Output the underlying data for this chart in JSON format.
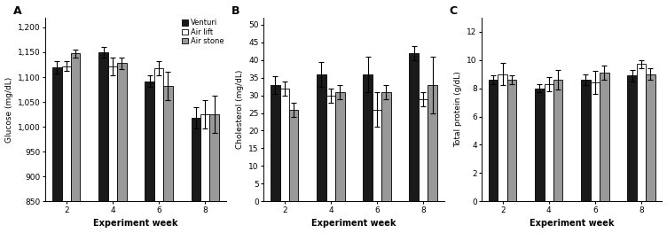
{
  "weeks": [
    2,
    4,
    6,
    8
  ],
  "panel_A": {
    "title": "A",
    "ylabel": "Glucose (mg/dL)",
    "xlabel": "Experiment week",
    "ylim": [
      850,
      1220
    ],
    "yticks": [
      850,
      900,
      950,
      1000,
      1050,
      1100,
      1150,
      1200
    ],
    "venturi": [
      1120,
      1150,
      1092,
      1018
    ],
    "airlift": [
      1122,
      1122,
      1118,
      1025
    ],
    "airstone": [
      1148,
      1128,
      1082,
      1025
    ],
    "venturi_err": [
      12,
      10,
      12,
      22
    ],
    "airlift_err": [
      10,
      18,
      15,
      28
    ],
    "airstone_err": [
      8,
      12,
      28,
      38
    ]
  },
  "panel_B": {
    "title": "B",
    "ylabel": "Cholesterol (mg/dL)",
    "xlabel": "Experiment week",
    "ylim": [
      0,
      52
    ],
    "yticks": [
      0,
      5,
      10,
      15,
      20,
      25,
      30,
      35,
      40,
      45,
      50
    ],
    "venturi": [
      33,
      36,
      36,
      42
    ],
    "airlift": [
      32,
      30,
      26,
      29
    ],
    "airstone": [
      26,
      31,
      31,
      33
    ],
    "venturi_err": [
      2.5,
      3.5,
      5,
      2
    ],
    "airlift_err": [
      2,
      2,
      5,
      2
    ],
    "airstone_err": [
      2,
      2,
      2,
      8
    ]
  },
  "panel_C": {
    "title": "C",
    "ylabel": "Total protein (g/dL)",
    "xlabel": "Experiment week",
    "ylim": [
      0,
      13
    ],
    "yticks": [
      0,
      2,
      4,
      6,
      8,
      10,
      12
    ],
    "venturi": [
      8.6,
      8.0,
      8.6,
      8.9
    ],
    "airlift": [
      9.0,
      8.3,
      8.4,
      9.7
    ],
    "airstone": [
      8.6,
      8.6,
      9.1,
      9.0
    ],
    "venturi_err": [
      0.3,
      0.3,
      0.4,
      0.4
    ],
    "airlift_err": [
      0.8,
      0.5,
      0.8,
      0.3
    ],
    "airstone_err": [
      0.3,
      0.7,
      0.5,
      0.4
    ]
  },
  "colors": {
    "venturi": "#1a1a1a",
    "airlift": "#ffffff",
    "airstone": "#999999"
  },
  "bar_width": 0.2,
  "legend_labels": [
    "Venturi",
    "Air lift",
    "Air stone"
  ]
}
